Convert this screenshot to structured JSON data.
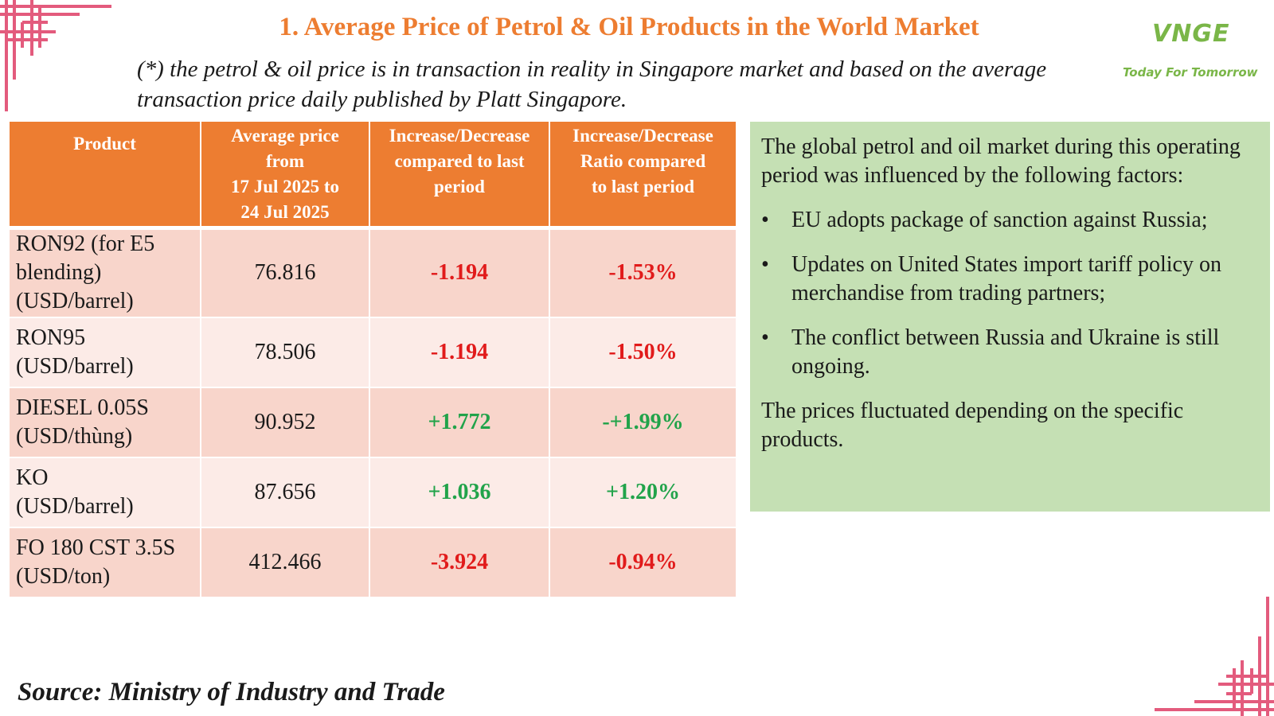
{
  "title": "1. Average Price of Petrol & Oil Products in the World Market",
  "subtitle_line1": "(*) the petrol & oil price is in transaction in reality in Singapore market and based on the average",
  "subtitle_line2": "transaction price daily published by Platt Singapore.",
  "logo": {
    "mark": "VNGE",
    "tagline": "Today For Tomorrow"
  },
  "table": {
    "headers": [
      [
        "Product"
      ],
      [
        "Average price",
        "from",
        "17 Jul 2025 to",
        "24 Jul 2025"
      ],
      [
        "Increase/Decrease",
        "compared to last",
        "period"
      ],
      [
        "Increase/Decrease",
        "Ratio compared",
        "to last period"
      ]
    ],
    "rows": [
      {
        "product": [
          "RON92 (for E5",
          "blending)",
          "(USD/barrel)"
        ],
        "price": "76.816",
        "change": "-1.194",
        "ratio": "-1.53%",
        "direction": "down"
      },
      {
        "product": [
          "RON95",
          "(USD/barrel)"
        ],
        "price": "78.506",
        "change": "-1.194",
        "ratio": "-1.50%",
        "direction": "down"
      },
      {
        "product": [
          "DIESEL 0.05S",
          "(USD/thùng)"
        ],
        "price": "90.952",
        "change": "+1.772",
        "ratio": "-+1.99%",
        "direction": "up"
      },
      {
        "product": [
          "KO",
          "(USD/barrel)"
        ],
        "price": "87.656",
        "change": "+1.036",
        "ratio": "+1.20%",
        "direction": "up"
      },
      {
        "product": [
          "FO 180 CST 3.5S",
          "(USD/ton)"
        ],
        "price": "412.466",
        "change": "-3.924",
        "ratio": "-0.94%",
        "direction": "down"
      }
    ]
  },
  "factors": {
    "intro": "The global petrol and oil market during this operating period was influenced by the following factors:",
    "bullet_symbol": "•",
    "items": [
      "EU adopts package of sanction against Russia;",
      "Updates on United States import tariff policy on merchandise from trading partners;",
      "The conflict between Russia and Ukraine is still ongoing."
    ],
    "conclusion": "The prices fluctuated depending on the specific products."
  },
  "source": "Source: Ministry of Industry and Trade",
  "colors": {
    "accent_orange": "#ed7d31",
    "row_dark": "#f8d5cb",
    "row_light": "#fcebe7",
    "negative": "#e11b1b",
    "positive": "#21a34a",
    "panel_green": "#c5e0b4",
    "logo_green": "#7ab648",
    "frame_pink": "#e35b7d"
  }
}
